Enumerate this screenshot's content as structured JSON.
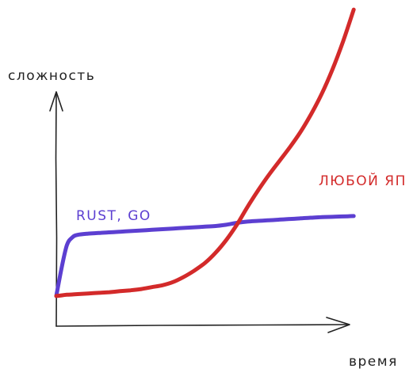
{
  "chart_data": {
    "type": "line",
    "ylabel": "сложность",
    "xlabel": "время",
    "grid": false,
    "legend": "inline labels",
    "x": [
      0,
      0.5,
      1,
      1.5,
      2,
      3,
      4,
      5,
      6,
      7,
      8,
      9,
      10,
      11,
      12,
      13,
      14,
      15,
      16,
      17,
      18,
      19,
      20,
      21,
      22,
      23,
      24,
      25,
      26,
      27,
      28
    ],
    "series": [
      {
        "name": "RUST, GO",
        "color": "#5c3fd1",
        "values": [
          1.0,
          3.2,
          5.0,
          5.6,
          5.8,
          5.9,
          5.95,
          6.0,
          6.05,
          6.1,
          6.15,
          6.2,
          6.25,
          6.3,
          6.35,
          6.4,
          6.45,
          6.5,
          6.6,
          6.75,
          6.85,
          6.9,
          6.95,
          7.0,
          7.05,
          7.1,
          7.15,
          7.2,
          7.22,
          7.25,
          7.28
        ],
        "label_pos": "upper-left"
      },
      {
        "name": "ЛЮБОЙ ЯП",
        "color": "#d32a2a",
        "values": [
          1.0,
          1.05,
          1.1,
          1.12,
          1.15,
          1.2,
          1.25,
          1.3,
          1.38,
          1.45,
          1.55,
          1.7,
          1.85,
          2.1,
          2.5,
          3.0,
          3.6,
          4.4,
          5.4,
          6.6,
          8.0,
          9.3,
          10.5,
          11.6,
          12.7,
          13.9,
          15.3,
          16.9,
          18.8,
          21.0,
          23.5
        ],
        "label_pos": "upper-right"
      }
    ],
    "xlim": [
      0,
      30
    ],
    "ylim": [
      0,
      25
    ]
  }
}
